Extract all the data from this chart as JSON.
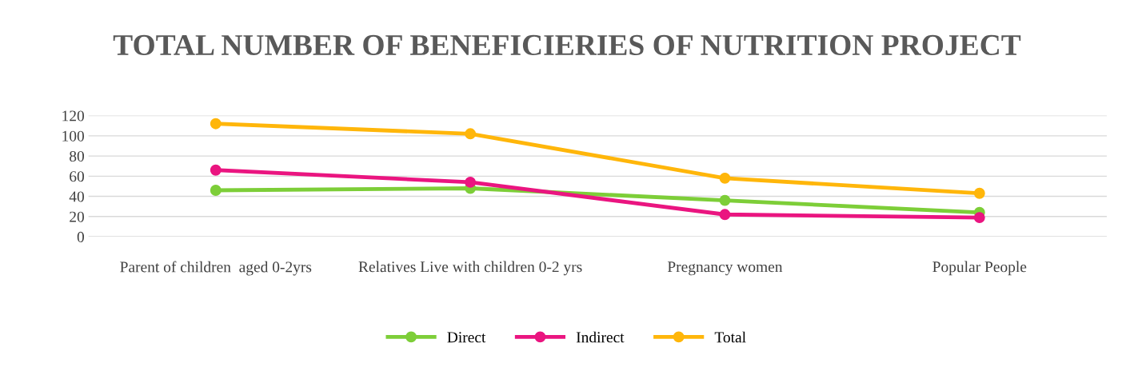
{
  "chart_data": {
    "type": "line",
    "title": "TOTAL NUMBER OF BENEFICIERIES OF NUTRITION PROJECT",
    "categories": [
      "Parent of children  aged 0-2yrs",
      "Relatives Live with children 0-2 yrs",
      "Pregnancy women",
      "Popular People"
    ],
    "series": [
      {
        "name": "Direct",
        "color": "#7dce38",
        "values": [
          46,
          48,
          36,
          24
        ]
      },
      {
        "name": "Indirect",
        "color": "#ea1580",
        "values": [
          66,
          54,
          22,
          19
        ]
      },
      {
        "name": "Total",
        "color": "#ffb60a",
        "values": [
          112,
          102,
          58,
          43
        ]
      }
    ],
    "ylim": [
      0,
      120
    ],
    "yticks": [
      0,
      20,
      40,
      60,
      80,
      100,
      120
    ],
    "grid": "y",
    "legend": "bottom",
    "marker": "circle",
    "line_style": "solid"
  }
}
